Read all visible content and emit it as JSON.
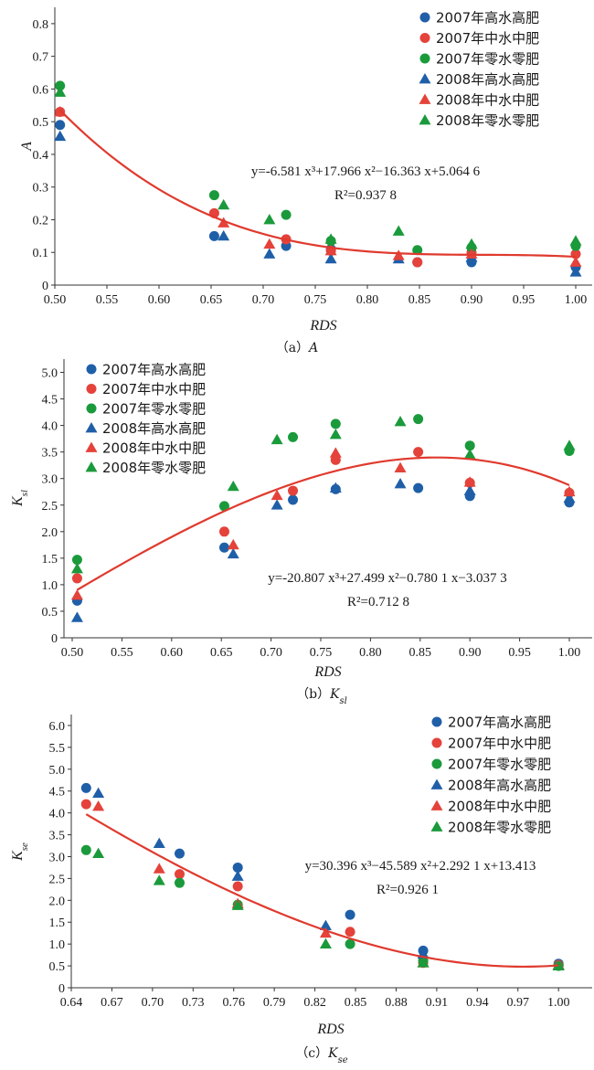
{
  "legend_labels": [
    "2007年高水高肥",
    "2007年中水中肥",
    "2007年零水零肥",
    "2008年高水高肥",
    "2008年中水中肥",
    "2008年零水零肥"
  ],
  "colors": {
    "blue": "#1f5fa8",
    "red": "#e4423a",
    "green": "#1a9a3b",
    "fit": "#e03a2e"
  },
  "chart_data": [
    {
      "type": "scatter",
      "xlabel": "RDS",
      "ylabel": "A",
      "caption_prefix": "（a）",
      "caption_var": "A",
      "caption_sub": "",
      "xlim": [
        0.5,
        1.0
      ],
      "ylim": [
        0,
        0.85
      ],
      "xticks": [
        "0.50",
        "0.55",
        "0.60",
        "0.65",
        "0.70",
        "0.75",
        "0.80",
        "0.85",
        "0.90",
        "0.95",
        "1.00"
      ],
      "yticks": [
        "0",
        "0.1",
        "0.2",
        "0.3",
        "0.4",
        "0.5",
        "0.6",
        "0.7",
        "0.8"
      ],
      "equation": "y=-6.581 x³+17.966 x²−16.363 x+5.064 6",
      "r2": "R²=0.937 8",
      "fit": {
        "coef": [
          -6.581,
          17.966,
          -16.363,
          5.0646
        ],
        "x_range": [
          0.505,
          1.0
        ]
      },
      "series": [
        {
          "name": "2007年高水高肥",
          "marker": "circle",
          "color": "blue",
          "points": [
            [
              0.505,
              0.49
            ],
            [
              0.653,
              0.15
            ],
            [
              0.722,
              0.12
            ],
            [
              0.765,
              0.11
            ],
            [
              0.848,
              0.07
            ],
            [
              0.9,
              0.07
            ],
            [
              1.0,
              0.055
            ]
          ]
        },
        {
          "name": "2007年中水中肥",
          "marker": "circle",
          "color": "red",
          "points": [
            [
              0.505,
              0.53
            ],
            [
              0.653,
              0.22
            ],
            [
              0.722,
              0.14
            ],
            [
              0.765,
              0.105
            ],
            [
              0.848,
              0.07
            ],
            [
              0.9,
              0.1
            ],
            [
              1.0,
              0.095
            ]
          ]
        },
        {
          "name": "2007年零水零肥",
          "marker": "circle",
          "color": "green",
          "points": [
            [
              0.505,
              0.61
            ],
            [
              0.653,
              0.275
            ],
            [
              0.722,
              0.215
            ],
            [
              0.765,
              0.135
            ],
            [
              0.848,
              0.107
            ],
            [
              0.9,
              0.115
            ],
            [
              1.0,
              0.12
            ]
          ]
        },
        {
          "name": "2008年高水高肥",
          "marker": "triangle",
          "color": "blue",
          "points": [
            [
              0.505,
              0.455
            ],
            [
              0.662,
              0.15
            ],
            [
              0.706,
              0.095
            ],
            [
              0.765,
              0.08
            ],
            [
              0.83,
              0.08
            ],
            [
              0.9,
              0.085
            ],
            [
              1.0,
              0.04
            ]
          ]
        },
        {
          "name": "2008年中水中肥",
          "marker": "triangle",
          "color": "red",
          "points": [
            [
              0.505,
              0.53
            ],
            [
              0.662,
              0.19
            ],
            [
              0.706,
              0.125
            ],
            [
              0.765,
              0.105
            ],
            [
              0.83,
              0.09
            ],
            [
              0.9,
              0.095
            ],
            [
              1.0,
              0.07
            ]
          ]
        },
        {
          "name": "2008年零水零肥",
          "marker": "triangle",
          "color": "green",
          "points": [
            [
              0.505,
              0.59
            ],
            [
              0.662,
              0.245
            ],
            [
              0.706,
              0.2
            ],
            [
              0.765,
              0.14
            ],
            [
              0.83,
              0.165
            ],
            [
              0.9,
              0.125
            ],
            [
              1.0,
              0.135
            ]
          ]
        }
      ]
    },
    {
      "type": "scatter",
      "xlabel": "RDS",
      "ylabel": "K",
      "ylabel_sub": "sl",
      "caption_prefix": "（b）",
      "caption_var": "K",
      "caption_sub": "sl",
      "xlim": [
        0.5,
        1.0
      ],
      "ylim": [
        0,
        5.25
      ],
      "xticks": [
        "0.50",
        "0.55",
        "0.60",
        "0.65",
        "0.70",
        "0.75",
        "0.80",
        "0.85",
        "0.90",
        "0.95",
        "1.00"
      ],
      "yticks": [
        "0",
        "0.5",
        "1.0",
        "1.5",
        "2.0",
        "2.5",
        "3.0",
        "3.5",
        "4.0",
        "4.5",
        "5.0"
      ],
      "equation": "y=-20.807 x³+27.499 x²−0.780 1 x−3.037 3",
      "r2": "R²=0.712 8",
      "fit": {
        "coef": [
          -20.807,
          27.499,
          -0.7801,
          -3.0373
        ],
        "x_range": [
          0.505,
          1.0
        ]
      },
      "series": [
        {
          "name": "2007年高水高肥",
          "marker": "circle",
          "color": "blue",
          "points": [
            [
              0.505,
              0.7
            ],
            [
              0.653,
              1.7
            ],
            [
              0.722,
              2.6
            ],
            [
              0.765,
              2.8
            ],
            [
              0.848,
              2.82
            ],
            [
              0.9,
              2.67
            ],
            [
              1.0,
              2.55
            ]
          ]
        },
        {
          "name": "2007年中水中肥",
          "marker": "circle",
          "color": "red",
          "points": [
            [
              0.505,
              1.12
            ],
            [
              0.653,
              2.0
            ],
            [
              0.722,
              2.77
            ],
            [
              0.765,
              3.35
            ],
            [
              0.848,
              3.5
            ],
            [
              0.9,
              2.92
            ],
            [
              1.0,
              2.73
            ]
          ]
        },
        {
          "name": "2007年零水零肥",
          "marker": "circle",
          "color": "green",
          "points": [
            [
              0.505,
              1.47
            ],
            [
              0.653,
              2.48
            ],
            [
              0.722,
              3.78
            ],
            [
              0.765,
              4.03
            ],
            [
              0.848,
              4.12
            ],
            [
              0.9,
              3.62
            ],
            [
              1.0,
              3.52
            ]
          ]
        },
        {
          "name": "2008年高水高肥",
          "marker": "triangle",
          "color": "blue",
          "points": [
            [
              0.505,
              0.38
            ],
            [
              0.662,
              1.58
            ],
            [
              0.706,
              2.5
            ],
            [
              0.765,
              2.82
            ],
            [
              0.83,
              2.9
            ],
            [
              0.9,
              2.77
            ],
            [
              1.0,
              2.63
            ]
          ]
        },
        {
          "name": "2008年中水中肥",
          "marker": "triangle",
          "color": "red",
          "points": [
            [
              0.505,
              0.8
            ],
            [
              0.662,
              1.75
            ],
            [
              0.706,
              2.68
            ],
            [
              0.765,
              3.48
            ],
            [
              0.83,
              3.2
            ],
            [
              0.9,
              2.93
            ],
            [
              1.0,
              2.75
            ]
          ]
        },
        {
          "name": "2008年零水零肥",
          "marker": "triangle",
          "color": "green",
          "points": [
            [
              0.505,
              1.3
            ],
            [
              0.662,
              2.85
            ],
            [
              0.706,
              3.73
            ],
            [
              0.765,
              3.83
            ],
            [
              0.83,
              4.07
            ],
            [
              0.9,
              3.45
            ],
            [
              1.0,
              3.62
            ]
          ]
        }
      ]
    },
    {
      "type": "scatter",
      "xlabel": "RDS",
      "ylabel": "K",
      "ylabel_sub": "se",
      "caption_prefix": "（c）",
      "caption_var": "K",
      "caption_sub": "se",
      "xlim": [
        0.64,
        1.01
      ],
      "ylim": [
        0,
        6.25
      ],
      "xticks": [
        "0.64",
        "0.67",
        "0.70",
        "0.73",
        "0.76",
        "0.79",
        "0.82",
        "0.85",
        "0.88",
        "0.91",
        "0.94",
        "0.97",
        "1.00"
      ],
      "yticks": [
        "0",
        "0.5",
        "1.0",
        "1.5",
        "2.0",
        "2.5",
        "3.0",
        "3.5",
        "4.0",
        "4.5",
        "5.0",
        "5.5",
        "6.0"
      ],
      "equation": "y=30.396 x³−45.589 x²+2.292 1 x+13.413",
      "r2": "R²=0.926 1",
      "fit": {
        "coef": [
          30.396,
          -45.589,
          2.2921,
          13.413
        ],
        "x_range": [
          0.651,
          1.0
        ]
      },
      "series": [
        {
          "name": "2007年高水高肥",
          "marker": "circle",
          "color": "blue",
          "points": [
            [
              0.651,
              4.57
            ],
            [
              0.72,
              3.07
            ],
            [
              0.763,
              2.75
            ],
            [
              0.846,
              1.67
            ],
            [
              0.9,
              0.85
            ],
            [
              1.0,
              0.55
            ]
          ]
        },
        {
          "name": "2007年中水中肥",
          "marker": "circle",
          "color": "red",
          "points": [
            [
              0.651,
              4.2
            ],
            [
              0.72,
              2.6
            ],
            [
              0.763,
              2.32
            ],
            [
              0.846,
              1.28
            ],
            [
              0.9,
              0.57
            ],
            [
              1.0,
              0.52
            ]
          ]
        },
        {
          "name": "2007年零水零肥",
          "marker": "circle",
          "color": "green",
          "points": [
            [
              0.651,
              3.15
            ],
            [
              0.72,
              2.4
            ],
            [
              0.763,
              1.9
            ],
            [
              0.846,
              1.0
            ],
            [
              0.9,
              0.62
            ],
            [
              1.0,
              0.5
            ]
          ]
        },
        {
          "name": "2008年高水高肥",
          "marker": "triangle",
          "color": "blue",
          "points": [
            [
              0.66,
              4.45
            ],
            [
              0.705,
              3.3
            ],
            [
              0.763,
              2.55
            ],
            [
              0.828,
              1.42
            ],
            [
              0.9,
              0.77
            ],
            [
              1.0,
              0.5
            ]
          ]
        },
        {
          "name": "2008年中水中肥",
          "marker": "triangle",
          "color": "red",
          "points": [
            [
              0.66,
              4.15
            ],
            [
              0.705,
              2.72
            ],
            [
              0.763,
              1.92
            ],
            [
              0.828,
              1.25
            ],
            [
              0.9,
              0.57
            ],
            [
              1.0,
              0.52
            ]
          ]
        },
        {
          "name": "2008年零水零肥",
          "marker": "triangle",
          "color": "green",
          "points": [
            [
              0.66,
              3.07
            ],
            [
              0.705,
              2.45
            ],
            [
              0.763,
              1.88
            ],
            [
              0.828,
              1.0
            ],
            [
              0.9,
              0.57
            ],
            [
              1.0,
              0.5
            ]
          ]
        }
      ]
    }
  ]
}
